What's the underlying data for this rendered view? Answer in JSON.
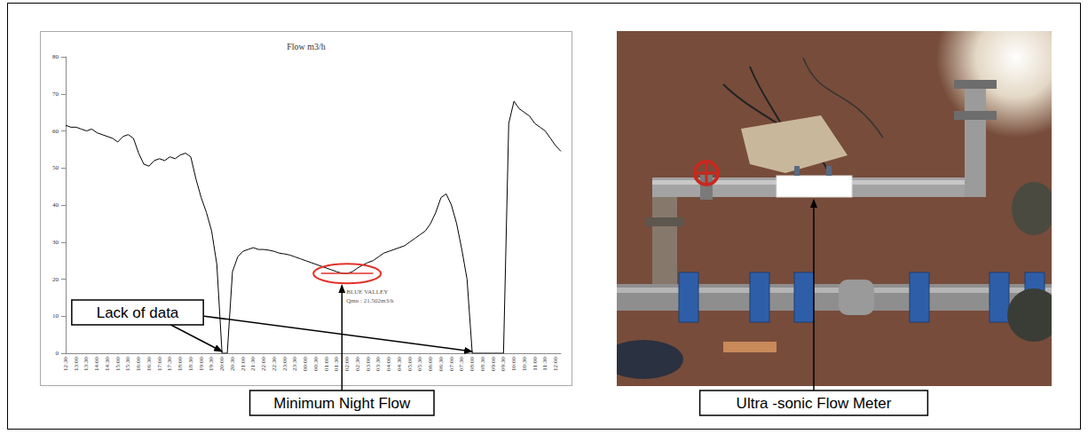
{
  "chart_data": {
    "type": "line",
    "title": "Flow m3/h",
    "categories": [
      "12:30",
      null,
      "13:00",
      null,
      "13:30",
      null,
      "14:00",
      null,
      "14:30",
      null,
      "15:00",
      null,
      "15:30",
      null,
      "16:00",
      null,
      "16:30",
      null,
      "17:00",
      null,
      "17:30",
      null,
      "18:00",
      null,
      "18:30",
      null,
      "19:00",
      null,
      "19:30",
      null,
      "20:00",
      null,
      "20:30",
      null,
      "21:00",
      null,
      "21:30",
      null,
      "22:00",
      null,
      "22:30",
      null,
      "23:00",
      null,
      "23:30",
      null,
      "00:00",
      null,
      "00:30",
      null,
      "01:00",
      null,
      "01:30",
      null,
      "02:00",
      null,
      "02:30",
      null,
      "03:00",
      null,
      "03:30",
      null,
      "04:00",
      null,
      "04:30",
      null,
      "05:00",
      null,
      "05:30",
      null,
      "06:00",
      null,
      "06:30",
      null,
      "07:00",
      null,
      "07:30",
      null,
      "08:00",
      null,
      "08:30",
      null,
      "09:00",
      null,
      "09:30",
      null,
      "10:00",
      null,
      "10:30",
      null,
      "11:00",
      null,
      "11:30",
      null,
      "12:00",
      null
    ],
    "values": [
      61.5,
      61,
      61,
      60.5,
      60,
      60.5,
      59.5,
      59,
      58.5,
      58,
      57,
      58.5,
      59,
      58,
      54,
      51,
      50.5,
      52,
      52.5,
      52,
      53,
      52.5,
      53.5,
      54,
      53,
      47,
      42,
      38,
      33,
      24,
      0,
      0,
      22,
      26,
      27.5,
      28,
      28.5,
      28,
      28,
      27.8,
      27.5,
      27,
      26.8,
      26.5,
      26,
      25.5,
      25,
      24.5,
      24,
      23.5,
      23,
      22.5,
      22,
      21.6,
      21.5,
      22,
      23,
      23.8,
      24.5,
      25,
      26,
      27,
      27.5,
      28,
      28.5,
      29,
      30,
      31,
      32,
      33,
      35,
      38,
      42,
      43,
      40,
      35,
      28,
      20,
      0,
      0,
      0,
      0,
      0,
      0,
      0,
      62,
      68,
      66,
      65,
      64,
      62,
      61,
      60,
      58,
      56,
      54.5
    ],
    "color": "#000000",
    "ylim": [
      0,
      80
    ],
    "yticks": [
      0,
      10,
      20,
      30,
      40,
      50,
      60,
      70,
      80
    ],
    "grid": false,
    "min_night_flow": {
      "category": "02:00",
      "value": 21.502,
      "label": "BLUE VALLEY",
      "value_label": "Qmn : 21.502m3/h",
      "color": "#e3312a"
    }
  },
  "callouts": {
    "lack_of_data": "Lack of data",
    "minimum_night_flow": "Minimum Night Flow",
    "flow_meter": "Ultra -sonic Flow Meter"
  }
}
